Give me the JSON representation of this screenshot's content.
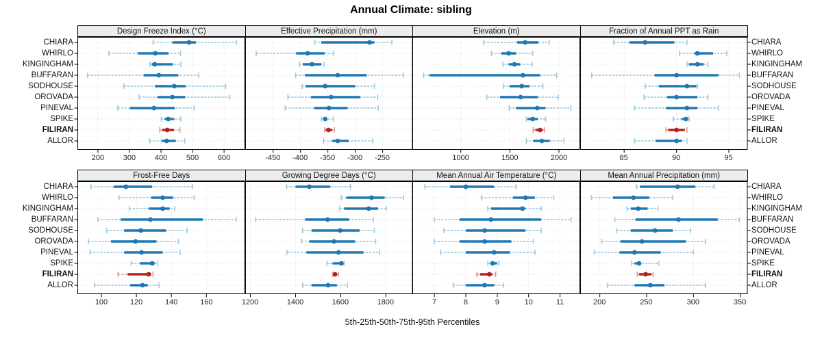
{
  "title": "Annual Climate: sibling",
  "caption": "5th-25th-50th-75th-95th Percentiles",
  "percentiles": [
    "5th",
    "25th",
    "50th",
    "75th",
    "95th"
  ],
  "highlight_site": "FILIRAN",
  "sites": [
    "CHIARA",
    "WHIRLO",
    "KINGINGHAM",
    "BUFFARAN",
    "SODHOUSE",
    "OROVADA",
    "PINEVAL",
    "SPIKE",
    "FILIRAN",
    "ALLOR"
  ],
  "colors": {
    "dark_blue": "#1f78b4",
    "light_blue": "#9ecae1",
    "dark_red": "#b22222",
    "light_red": "#e09999",
    "strip_bg": "#ececec",
    "grid": "#d9d9d9",
    "border": "#000000"
  },
  "chart_data": [
    {
      "type": "dot-whisker",
      "title": "Design Freeze Index (°C)",
      "xlim": [
        135,
        666
      ],
      "xticks": [
        200,
        300,
        400,
        500,
        600
      ],
      "series": [
        {
          "name": "CHIARA",
          "values": [
            375,
            436,
            489,
            511,
            639
          ]
        },
        {
          "name": "WHIRLO",
          "values": [
            235,
            327,
            382,
            424,
            462
          ]
        },
        {
          "name": "KINGINGHAM",
          "values": [
            365,
            371,
            380,
            438,
            463
          ]
        },
        {
          "name": "BUFFARAN",
          "values": [
            167,
            345,
            393,
            455,
            520
          ]
        },
        {
          "name": "SODHOUSE",
          "values": [
            282,
            381,
            442,
            478,
            605
          ]
        },
        {
          "name": "OROVADA",
          "values": [
            331,
            389,
            436,
            477,
            618
          ]
        },
        {
          "name": "PINEVAL",
          "values": [
            263,
            302,
            378,
            444,
            505
          ]
        },
        {
          "name": "SPIKE",
          "values": [
            401,
            411,
            423,
            442,
            463
          ]
        },
        {
          "name": "FILIRAN",
          "values": [
            396,
            404,
            420,
            441,
            460
          ]
        },
        {
          "name": "ALLOR",
          "values": [
            364,
            402,
            418,
            447,
            475
          ]
        }
      ]
    },
    {
      "type": "dot-whisker",
      "title": "Effective Precipitation (mm)",
      "xlim": [
        -501,
        -195
      ],
      "xticks": [
        -450,
        -400,
        -350,
        -300,
        -250
      ],
      "series": [
        {
          "name": "CHIARA",
          "values": [
            -374,
            -362,
            -274,
            -265,
            -233
          ]
        },
        {
          "name": "WHIRLO",
          "values": [
            -481,
            -408,
            -387,
            -356,
            -340
          ]
        },
        {
          "name": "KINGINGHAM",
          "values": [
            -402,
            -396,
            -379,
            -362,
            -357
          ]
        },
        {
          "name": "BUFFARAN",
          "values": [
            -409,
            -392,
            -332,
            -279,
            -212
          ]
        },
        {
          "name": "SODHOUSE",
          "values": [
            -397,
            -391,
            -355,
            -300,
            -265
          ]
        },
        {
          "name": "OROVADA",
          "values": [
            -423,
            -381,
            -344,
            -291,
            -259
          ]
        },
        {
          "name": "PINEVAL",
          "values": [
            -428,
            -375,
            -348,
            -314,
            -258
          ]
        },
        {
          "name": "SPIKE",
          "values": [
            -362,
            -359,
            -355,
            -351,
            -340
          ]
        },
        {
          "name": "FILIRAN",
          "values": [
            -356,
            -354,
            -349,
            -342,
            -338
          ]
        },
        {
          "name": "ALLOR",
          "values": [
            -358,
            -342,
            -332,
            -312,
            -268
          ]
        }
      ]
    },
    {
      "type": "dot-whisker",
      "title": "Elevation (m)",
      "xlim": [
        507,
        2213
      ],
      "xticks": [
        1000,
        1500,
        2000
      ],
      "series": [
        {
          "name": "CHIARA",
          "values": [
            1233,
            1574,
            1656,
            1791,
            1900
          ]
        },
        {
          "name": "WHIRLO",
          "values": [
            1312,
            1412,
            1488,
            1563,
            1733
          ]
        },
        {
          "name": "KINGINGHAM",
          "values": [
            1428,
            1488,
            1547,
            1605,
            1726
          ]
        },
        {
          "name": "BUFFARAN",
          "values": [
            621,
            680,
            1633,
            1807,
            1977
          ]
        },
        {
          "name": "SODHOUSE",
          "values": [
            1435,
            1498,
            1621,
            1702,
            1837
          ]
        },
        {
          "name": "OROVADA",
          "values": [
            1265,
            1400,
            1609,
            1784,
            1993
          ]
        },
        {
          "name": "PINEVAL",
          "values": [
            1493,
            1563,
            1779,
            1865,
            2121
          ]
        },
        {
          "name": "SPIKE",
          "values": [
            1667,
            1679,
            1733,
            1784,
            1865
          ]
        },
        {
          "name": "FILIRAN",
          "values": [
            1737,
            1760,
            1807,
            1837,
            1853
          ]
        },
        {
          "name": "ALLOR",
          "values": [
            1667,
            1737,
            1826,
            1907,
            2051
          ]
        }
      ]
    },
    {
      "type": "dot-whisker",
      "title": "Fraction of Annual PPT as Rain",
      "xlim": [
        80.8,
        96.8
      ],
      "xticks": [
        85,
        90,
        95
      ],
      "series": [
        {
          "name": "CHIARA",
          "values": [
            84,
            85.5,
            87,
            89.8,
            91
          ]
        },
        {
          "name": "WHIRLO",
          "values": [
            90.3,
            91.7,
            92,
            93.5,
            94.8
          ]
        },
        {
          "name": "KINGINGHAM",
          "values": [
            91,
            91.2,
            92,
            92.6,
            93
          ]
        },
        {
          "name": "BUFFARAN",
          "values": [
            81.9,
            87.9,
            90,
            94,
            96
          ]
        },
        {
          "name": "SODHOUSE",
          "values": [
            87,
            88.3,
            91,
            91.9,
            92
          ]
        },
        {
          "name": "OROVADA",
          "values": [
            86.9,
            89.1,
            90,
            92,
            93
          ]
        },
        {
          "name": "PINEVAL",
          "values": [
            86,
            89,
            91,
            92,
            94
          ]
        },
        {
          "name": "SPIKE",
          "values": [
            89.7,
            90.5,
            90.9,
            91.1,
            91.2
          ]
        },
        {
          "name": "FILIRAN",
          "values": [
            89,
            89.2,
            90,
            90.8,
            91
          ]
        },
        {
          "name": "ALLOR",
          "values": [
            86,
            88,
            90,
            90.5,
            91
          ]
        }
      ]
    },
    {
      "type": "dot-whisker",
      "title": "Frost-Free Days",
      "xlim": [
        86.3,
        182
      ],
      "xticks": [
        100,
        120,
        140,
        160
      ],
      "series": [
        {
          "name": "CHIARA",
          "values": [
            94,
            107,
            114,
            129,
            152
          ]
        },
        {
          "name": "WHIRLO",
          "values": [
            110,
            128.5,
            135,
            141,
            153
          ]
        },
        {
          "name": "KINGINGHAM",
          "values": [
            116,
            127,
            135,
            139,
            142
          ]
        },
        {
          "name": "BUFFARAN",
          "values": [
            98,
            111,
            128,
            158,
            177
          ]
        },
        {
          "name": "SODHOUSE",
          "values": [
            103,
            113,
            122.5,
            137,
            149
          ]
        },
        {
          "name": "OROVADA",
          "values": [
            92.5,
            105.5,
            119.5,
            131.5,
            144
          ]
        },
        {
          "name": "PINEVAL",
          "values": [
            93.5,
            113,
            123,
            135,
            145
          ]
        },
        {
          "name": "SPIKE",
          "values": [
            117,
            122,
            129,
            130.5,
            132
          ]
        },
        {
          "name": "FILIRAN",
          "values": [
            109.5,
            115,
            127,
            128.5,
            129.5
          ]
        },
        {
          "name": "ALLOR",
          "values": [
            96,
            116.5,
            123.5,
            126.5,
            133
          ]
        }
      ]
    },
    {
      "type": "dot-whisker",
      "title": "Growing Degree Days (°C)",
      "xlim": [
        1177,
        1919
      ],
      "xticks": [
        1200,
        1400,
        1600,
        1800
      ],
      "series": [
        {
          "name": "CHIARA",
          "values": [
            1360,
            1400,
            1461,
            1554,
            1643
          ]
        },
        {
          "name": "WHIRLO",
          "values": [
            1603,
            1625,
            1737,
            1795,
            1878
          ]
        },
        {
          "name": "KINGINGHAM",
          "values": [
            1595,
            1615,
            1724,
            1765,
            1802
          ]
        },
        {
          "name": "BUFFARAN",
          "values": [
            1223,
            1443,
            1542,
            1637,
            1745
          ]
        },
        {
          "name": "SODHOUSE",
          "values": [
            1431,
            1471,
            1598,
            1684,
            1749
          ]
        },
        {
          "name": "OROVADA",
          "values": [
            1426,
            1461,
            1570,
            1664,
            1755
          ]
        },
        {
          "name": "PINEVAL",
          "values": [
            1362,
            1448,
            1590,
            1701,
            1772
          ]
        },
        {
          "name": "SPIKE",
          "values": [
            1539,
            1564,
            1603,
            1610,
            1615
          ]
        },
        {
          "name": "FILIRAN",
          "values": [
            1564,
            1568,
            1575,
            1583,
            1590
          ]
        },
        {
          "name": "ALLOR",
          "values": [
            1431,
            1471,
            1544,
            1583,
            1630
          ]
        }
      ]
    },
    {
      "type": "dot-whisker",
      "title": "Mean Annual Air Temperature (°C)",
      "xlim": [
        6.3,
        11.63
      ],
      "xticks": [
        7,
        8,
        9,
        10,
        11
      ],
      "series": [
        {
          "name": "CHIARA",
          "values": [
            6.7,
            7.5,
            8.0,
            8.9,
            9.6
          ]
        },
        {
          "name": "WHIRLO",
          "values": [
            8.5,
            9.5,
            9.9,
            10.2,
            10.8
          ]
        },
        {
          "name": "KINGINGHAM",
          "values": [
            8.7,
            8.8,
            9.8,
            9.9,
            10.4
          ]
        },
        {
          "name": "BUFFARAN",
          "values": [
            7.0,
            7.8,
            8.8,
            10.4,
            11.35
          ]
        },
        {
          "name": "SODHOUSE",
          "values": [
            7.3,
            8.0,
            8.6,
            9.9,
            10.4
          ]
        },
        {
          "name": "OROVADA",
          "values": [
            7.0,
            7.8,
            8.6,
            9.45,
            10.15
          ]
        },
        {
          "name": "PINEVAL",
          "values": [
            7.2,
            8.0,
            8.9,
            9.4,
            10.2
          ]
        },
        {
          "name": "SPIKE",
          "values": [
            8.7,
            8.8,
            8.85,
            9.0,
            9.05
          ]
        },
        {
          "name": "FILIRAN",
          "values": [
            8.35,
            8.45,
            8.75,
            8.85,
            8.95
          ]
        },
        {
          "name": "ALLOR",
          "values": [
            7.6,
            8.0,
            8.6,
            8.9,
            9.2
          ]
        }
      ]
    },
    {
      "type": "dot-whisker",
      "title": "Mean Annual Precipitation (mm)",
      "xlim": [
        179,
        358
      ],
      "xticks": [
        200,
        250,
        300,
        350
      ],
      "series": [
        {
          "name": "CHIARA",
          "values": [
            239,
            243,
            283,
            302,
            322
          ]
        },
        {
          "name": "WHIRLO",
          "values": [
            191,
            214,
            236,
            253,
            278
          ]
        },
        {
          "name": "KINGINGHAM",
          "values": [
            229,
            233,
            241,
            251,
            262
          ]
        },
        {
          "name": "BUFFARAN",
          "values": [
            216,
            238,
            284,
            326,
            349
          ]
        },
        {
          "name": "SODHOUSE",
          "values": [
            218,
            233,
            259,
            278,
            297
          ]
        },
        {
          "name": "OROVADA",
          "values": [
            202,
            222,
            245,
            292,
            313
          ]
        },
        {
          "name": "PINEVAL",
          "values": [
            194,
            221,
            237,
            265,
            300
          ]
        },
        {
          "name": "SPIKE",
          "values": [
            234,
            237,
            242,
            244,
            263
          ]
        },
        {
          "name": "FILIRAN",
          "values": [
            240,
            242,
            249,
            255,
            257
          ]
        },
        {
          "name": "ALLOR",
          "values": [
            208,
            237,
            254,
            269,
            313
          ]
        }
      ]
    }
  ]
}
